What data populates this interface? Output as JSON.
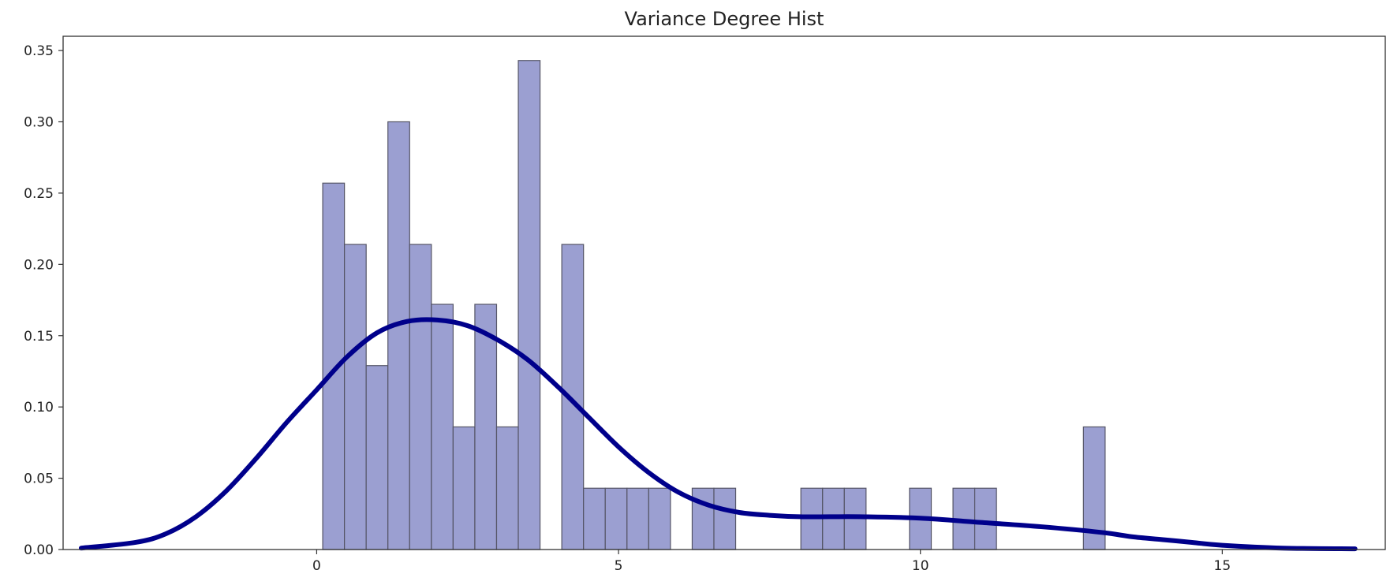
{
  "chart_data": {
    "type": "bar",
    "title": "Variance Degree Hist",
    "xlabel": "",
    "ylabel": "",
    "xlim": [
      -4.2,
      17.7
    ],
    "ylim": [
      0,
      0.36
    ],
    "x_ticks": [
      0,
      5,
      10,
      15
    ],
    "x_tick_labels": [
      "0",
      "5",
      "10",
      "15"
    ],
    "y_ticks": [
      0,
      0.05,
      0.1,
      0.15,
      0.2,
      0.25,
      0.3,
      0.35
    ],
    "y_tick_labels": [
      "0.00",
      "0.05",
      "0.10",
      "0.15",
      "0.20",
      "0.25",
      "0.30",
      "0.35"
    ],
    "grid": false,
    "bins": {
      "start": 0.1,
      "width": 0.36,
      "values": [
        0.257,
        0.214,
        0.129,
        0.3,
        0.214,
        0.172,
        0.086,
        0.172,
        0.086,
        0.343,
        0,
        0.214,
        0.043,
        0.043,
        0.043,
        0.043,
        0,
        0.043,
        0.043,
        0,
        0,
        0,
        0.043,
        0.043,
        0.043,
        0,
        0,
        0.043,
        0,
        0.043,
        0.043,
        0,
        0,
        0,
        0,
        0.086
      ]
    },
    "kde": {
      "x": [
        -3.9,
        -3.0,
        -2.5,
        -2.0,
        -1.5,
        -1.0,
        -0.5,
        0,
        0.5,
        1.0,
        1.5,
        2.0,
        2.5,
        3.0,
        3.5,
        4.0,
        4.5,
        5.0,
        5.5,
        6.0,
        6.5,
        7.0,
        7.5,
        8.0,
        8.5,
        9.0,
        10.0,
        11.0,
        12.0,
        13.0,
        13.5,
        14.0,
        14.5,
        15.0,
        16.0,
        17.2
      ],
      "y": [
        0.001,
        0.005,
        0.011,
        0.023,
        0.041,
        0.064,
        0.089,
        0.112,
        0.135,
        0.152,
        0.16,
        0.161,
        0.157,
        0.147,
        0.133,
        0.114,
        0.093,
        0.072,
        0.054,
        0.04,
        0.031,
        0.026,
        0.024,
        0.023,
        0.023,
        0.023,
        0.022,
        0.019,
        0.016,
        0.012,
        0.009,
        0.007,
        0.005,
        0.003,
        0.001,
        0.0005
      ]
    },
    "colors": {
      "bar_fill": "#9b9fd1",
      "bar_edge": "#555566",
      "kde_line": "#00008b",
      "axis": "#333333"
    }
  }
}
